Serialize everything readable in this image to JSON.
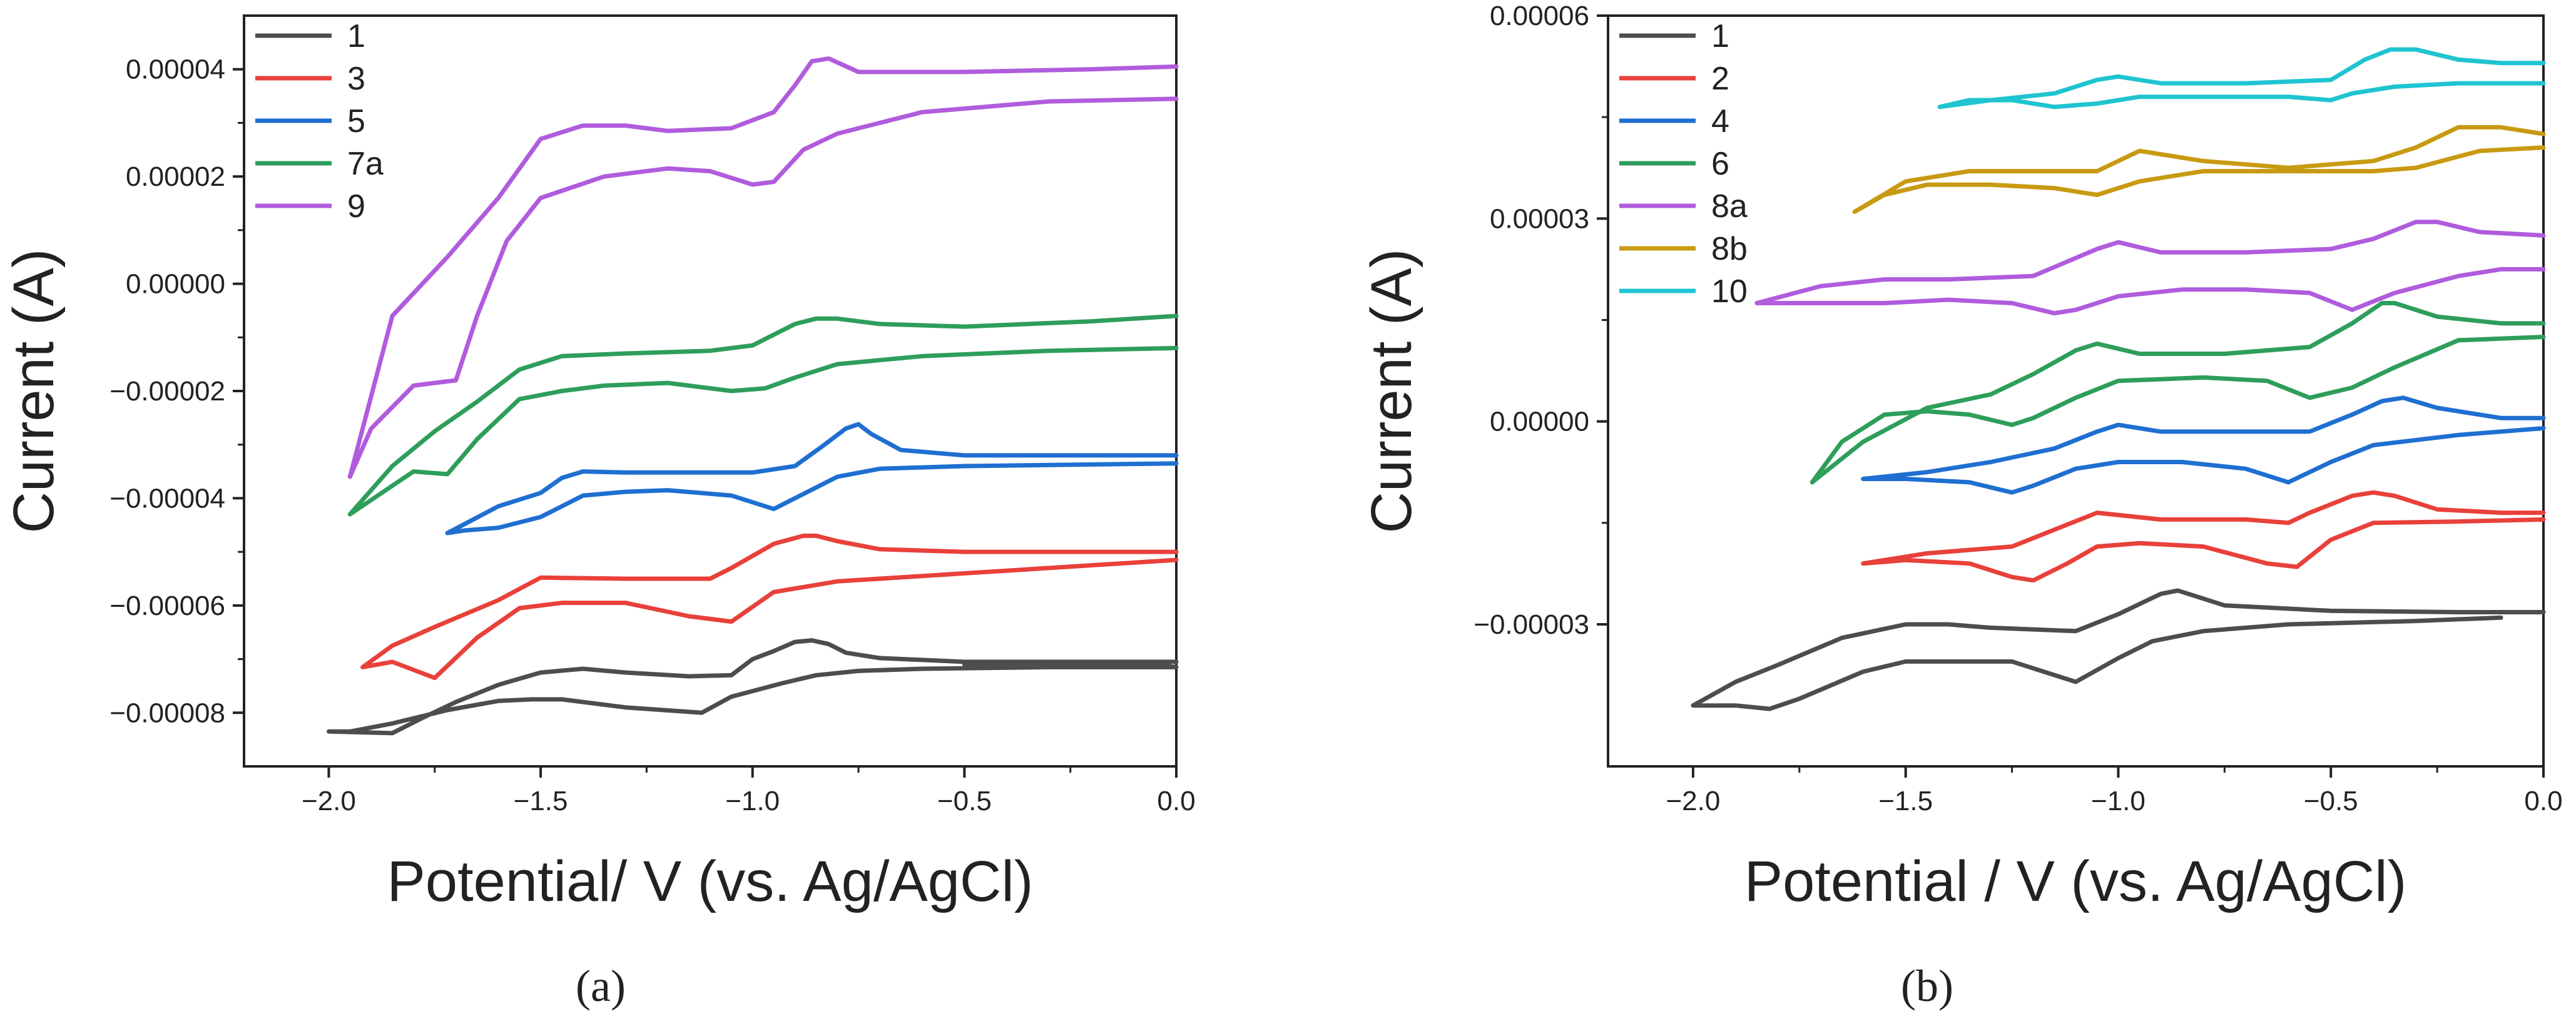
{
  "chart_data": [
    {
      "type": "line",
      "panel_label": "(a)",
      "xlabel": "Potential/ V (vs. Ag/AgCl)",
      "ylabel": "Current (A)",
      "xlim": [
        -2.2,
        0.0
      ],
      "ylim": [
        -9e-05,
        5e-05
      ],
      "xticks": [
        -2.0,
        -1.5,
        -1.0,
        -0.5,
        0.0
      ],
      "xtick_labels": [
        "−2.0",
        "−1.5",
        "−1.0",
        "−0.5",
        "0.0"
      ],
      "yticks": [
        4e-05,
        2e-05,
        0.0,
        -2e-05,
        -4e-05,
        -6e-05,
        -8e-05
      ],
      "ytick_labels": [
        "0.00004",
        "0.00002",
        "0.00000",
        "−0.00002",
        "−0.00004",
        "−0.00006",
        "−0.00008"
      ],
      "legend_position": "top-left",
      "series": [
        {
          "name": "1",
          "color": "#4d4d4d",
          "x": [
            -0.5,
            -0.3,
            -0.05,
            0.0,
            -0.3,
            -0.6,
            -0.75,
            -0.85,
            -0.93,
            -1.05,
            -1.12,
            -1.3,
            -1.45,
            -1.52,
            -1.6,
            -1.72,
            -1.85,
            -1.95,
            -2.0,
            -1.85,
            -1.78,
            -1.7,
            -1.6,
            -1.5,
            -1.4,
            -1.3,
            -1.15,
            -1.05,
            -1.0,
            -0.95,
            -0.9,
            -0.86,
            -0.82,
            -0.78,
            -0.7,
            -0.5,
            -0.2,
            0.0
          ],
          "y": [
            -7.1e-05,
            -7.1e-05,
            -7.1e-05,
            -7.15e-05,
            -7.15e-05,
            -7.18e-05,
            -7.22e-05,
            -7.3e-05,
            -7.45e-05,
            -7.7e-05,
            -8e-05,
            -7.9e-05,
            -7.75e-05,
            -7.75e-05,
            -7.78e-05,
            -7.95e-05,
            -8.2e-05,
            -8.35e-05,
            -8.35e-05,
            -8.38e-05,
            -8.1e-05,
            -7.8e-05,
            -7.48e-05,
            -7.25e-05,
            -7.18e-05,
            -7.25e-05,
            -7.32e-05,
            -7.3e-05,
            -7e-05,
            -6.85e-05,
            -6.68e-05,
            -6.65e-05,
            -6.72e-05,
            -6.88e-05,
            -6.98e-05,
            -7.05e-05,
            -7.05e-05,
            -7.05e-05
          ]
        },
        {
          "name": "3",
          "color": "#e8413a",
          "x": [
            0.0,
            -0.3,
            -0.6,
            -0.8,
            -0.95,
            -1.05,
            -1.15,
            -1.3,
            -1.45,
            -1.55,
            -1.65,
            -1.75,
            -1.85,
            -1.92,
            -1.85,
            -1.75,
            -1.6,
            -1.5,
            -1.3,
            -1.1,
            -1.05,
            -0.95,
            -0.88,
            -0.85,
            -0.8,
            -0.7,
            -0.5,
            -0.2,
            0.0
          ],
          "y": [
            -5.15e-05,
            -5.3e-05,
            -5.45e-05,
            -5.55e-05,
            -5.75e-05,
            -6.3e-05,
            -6.2e-05,
            -5.95e-05,
            -5.95e-05,
            -6.05e-05,
            -6.6e-05,
            -7.35e-05,
            -7.05e-05,
            -7.15e-05,
            -6.75e-05,
            -6.4e-05,
            -5.9e-05,
            -5.48e-05,
            -5.5e-05,
            -5.5e-05,
            -5.3e-05,
            -4.85e-05,
            -4.7e-05,
            -4.7e-05,
            -4.8e-05,
            -4.95e-05,
            -5e-05,
            -5e-05,
            -5e-05
          ]
        },
        {
          "name": "5",
          "color": "#1f6fd1",
          "x": [
            0.0,
            -0.5,
            -0.7,
            -0.8,
            -0.9,
            -0.95,
            -1.05,
            -1.2,
            -1.3,
            -1.4,
            -1.5,
            -1.6,
            -1.68,
            -1.72,
            -1.6,
            -1.5,
            -1.45,
            -1.4,
            -1.3,
            -1.0,
            -0.9,
            -0.83,
            -0.78,
            -0.75,
            -0.72,
            -0.65,
            -0.5,
            0.0
          ],
          "y": [
            -3.35e-05,
            -3.4e-05,
            -3.45e-05,
            -3.6e-05,
            -4e-05,
            -4.2e-05,
            -3.95e-05,
            -3.85e-05,
            -3.88e-05,
            -3.95e-05,
            -4.35e-05,
            -4.55e-05,
            -4.6e-05,
            -4.65e-05,
            -4.15e-05,
            -3.9e-05,
            -3.62e-05,
            -3.5e-05,
            -3.52e-05,
            -3.52e-05,
            -3.4e-05,
            -3e-05,
            -2.7e-05,
            -2.62e-05,
            -2.8e-05,
            -3.1e-05,
            -3.2e-05,
            -3.2e-05
          ]
        },
        {
          "name": "7a",
          "color": "#2e9e5b",
          "x": [
            0.0,
            -0.3,
            -0.6,
            -0.8,
            -0.9,
            -0.97,
            -1.05,
            -1.2,
            -1.35,
            -1.45,
            -1.55,
            -1.65,
            -1.72,
            -1.8,
            -1.95,
            -1.85,
            -1.75,
            -1.65,
            -1.55,
            -1.45,
            -1.3,
            -1.1,
            -1.0,
            -0.9,
            -0.85,
            -0.8,
            -0.7,
            -0.5,
            -0.2,
            0.0
          ],
          "y": [
            -1.2e-05,
            -1.25e-05,
            -1.35e-05,
            -1.5e-05,
            -1.75e-05,
            -1.95e-05,
            -2e-05,
            -1.85e-05,
            -1.9e-05,
            -2e-05,
            -2.15e-05,
            -2.9e-05,
            -3.55e-05,
            -3.5e-05,
            -4.3e-05,
            -3.4e-05,
            -2.75e-05,
            -2.2e-05,
            -1.6e-05,
            -1.35e-05,
            -1.3e-05,
            -1.25e-05,
            -1.15e-05,
            -7.5e-06,
            -6.5e-06,
            -6.5e-06,
            -7.5e-06,
            -8e-06,
            -7e-06,
            -6e-06
          ]
        },
        {
          "name": "9",
          "color": "#b05cdd",
          "x": [
            0.0,
            -0.3,
            -0.6,
            -0.8,
            -0.88,
            -0.95,
            -1.0,
            -1.1,
            -1.2,
            -1.35,
            -1.5,
            -1.58,
            -1.65,
            -1.7,
            -1.8,
            -1.9,
            -1.95,
            -1.85,
            -1.72,
            -1.6,
            -1.5,
            -1.4,
            -1.3,
            -1.2,
            -1.05,
            -0.95,
            -0.9,
            -0.86,
            -0.82,
            -0.75,
            -0.5,
            -0.2,
            0.0
          ],
          "y": [
            3.45e-05,
            3.4e-05,
            3.2e-05,
            2.8e-05,
            2.5e-05,
            1.9e-05,
            1.85e-05,
            2.1e-05,
            2.15e-05,
            2e-05,
            1.6e-05,
            8e-06,
            -6e-06,
            -1.8e-05,
            -1.9e-05,
            -2.7e-05,
            -3.6e-05,
            -6e-06,
            5e-06,
            1.6e-05,
            2.7e-05,
            2.95e-05,
            2.95e-05,
            2.85e-05,
            2.9e-05,
            3.2e-05,
            3.7e-05,
            4.15e-05,
            4.2e-05,
            3.95e-05,
            3.95e-05,
            4e-05,
            4.05e-05
          ]
        }
      ]
    },
    {
      "type": "line",
      "panel_label": "(b)",
      "xlabel": "Potential / V (vs. Ag/AgCl)",
      "ylabel": "Current (A)",
      "xlim": [
        -2.2,
        0.0
      ],
      "ylim": [
        -5.1e-05,
        6e-05
      ],
      "xticks": [
        -2.0,
        -1.5,
        -1.0,
        -0.5,
        0.0
      ],
      "xtick_labels": [
        "−2.0",
        "−1.5",
        "−1.0",
        "−0.5",
        "0.0"
      ],
      "yticks": [
        6e-05,
        3e-05,
        0.0,
        -3e-05
      ],
      "ytick_labels": [
        "0.00006",
        "0.00003",
        "0.00000",
        "−0.00003"
      ],
      "legend_position": "top-left",
      "series": [
        {
          "name": "1",
          "color": "#4d4d4d",
          "x": [
            -0.1,
            -0.3,
            -0.6,
            -0.8,
            -0.92,
            -1.0,
            -1.1,
            -1.25,
            -1.4,
            -1.5,
            -1.6,
            -1.75,
            -1.82,
            -1.9,
            -2.0,
            -1.9,
            -1.8,
            -1.65,
            -1.5,
            -1.4,
            -1.3,
            -1.1,
            -1.0,
            -0.95,
            -0.9,
            -0.86,
            -0.82,
            -0.75,
            -0.5,
            -0.2,
            0.0
          ],
          "y": [
            -2.9e-05,
            -2.95e-05,
            -3e-05,
            -3.1e-05,
            -3.25e-05,
            -3.5e-05,
            -3.85e-05,
            -3.55e-05,
            -3.55e-05,
            -3.55e-05,
            -3.7e-05,
            -4.1e-05,
            -4.25e-05,
            -4.2e-05,
            -4.2e-05,
            -3.85e-05,
            -3.6e-05,
            -3.2e-05,
            -3e-05,
            -3e-05,
            -3.05e-05,
            -3.1e-05,
            -2.85e-05,
            -2.7e-05,
            -2.55e-05,
            -2.5e-05,
            -2.58e-05,
            -2.72e-05,
            -2.8e-05,
            -2.82e-05,
            -2.82e-05
          ]
        },
        {
          "name": "2",
          "color": "#e8413a",
          "x": [
            0.0,
            -0.2,
            -0.4,
            -0.5,
            -0.58,
            -0.65,
            -0.8,
            -0.95,
            -1.05,
            -1.12,
            -1.2,
            -1.25,
            -1.35,
            -1.5,
            -1.6,
            -1.45,
            -1.25,
            -1.15,
            -1.05,
            -0.9,
            -0.7,
            -0.6,
            -0.55,
            -0.45,
            -0.4,
            -0.35,
            -0.25,
            -0.1,
            0.0
          ],
          "y": [
            -1.45e-05,
            -1.48e-05,
            -1.5e-05,
            -1.75e-05,
            -2.15e-05,
            -2.1e-05,
            -1.85e-05,
            -1.8e-05,
            -1.85e-05,
            -2.1e-05,
            -2.35e-05,
            -2.3e-05,
            -2.1e-05,
            -2.05e-05,
            -2.1e-05,
            -1.95e-05,
            -1.85e-05,
            -1.6e-05,
            -1.35e-05,
            -1.45e-05,
            -1.45e-05,
            -1.5e-05,
            -1.35e-05,
            -1.1e-05,
            -1.05e-05,
            -1.1e-05,
            -1.3e-05,
            -1.35e-05,
            -1.35e-05
          ]
        },
        {
          "name": "4",
          "color": "#1f6fd1",
          "x": [
            0.0,
            -0.2,
            -0.4,
            -0.5,
            -0.6,
            -0.7,
            -0.85,
            -1.0,
            -1.1,
            -1.2,
            -1.25,
            -1.35,
            -1.5,
            -1.6,
            -1.45,
            -1.3,
            -1.15,
            -1.05,
            -1.0,
            -0.9,
            -0.7,
            -0.55,
            -0.45,
            -0.38,
            -0.33,
            -0.25,
            -0.1,
            0.0
          ],
          "y": [
            -1e-06,
            -2e-06,
            -3.5e-06,
            -6e-06,
            -9e-06,
            -7e-06,
            -6e-06,
            -6e-06,
            -7e-06,
            -9.5e-06,
            -1.05e-05,
            -9e-06,
            -8.5e-06,
            -8.5e-06,
            -7.5e-06,
            -6e-06,
            -4e-06,
            -1.5e-06,
            -5e-07,
            -1.5e-06,
            -1.5e-06,
            -1.5e-06,
            1e-06,
            3e-06,
            3.5e-06,
            2e-06,
            5e-07,
            5e-07
          ]
        },
        {
          "name": "6",
          "color": "#2e9e5b",
          "x": [
            0.0,
            -0.2,
            -0.35,
            -0.45,
            -0.55,
            -0.65,
            -0.8,
            -1.0,
            -1.1,
            -1.2,
            -1.25,
            -1.35,
            -1.45,
            -1.55,
            -1.65,
            -1.72,
            -1.6,
            -1.45,
            -1.3,
            -1.2,
            -1.1,
            -1.05,
            -0.95,
            -0.75,
            -0.55,
            -0.45,
            -0.38,
            -0.35,
            -0.25,
            -0.1,
            0.0
          ],
          "y": [
            1.25e-05,
            1.2e-05,
            8e-06,
            5e-06,
            3.5e-06,
            6e-06,
            6.5e-06,
            6e-06,
            3.5e-06,
            5e-07,
            -5e-07,
            1e-06,
            1.5e-06,
            1e-06,
            -3e-06,
            -9e-06,
            -3e-06,
            2e-06,
            4e-06,
            7e-06,
            1.05e-05,
            1.15e-05,
            1e-05,
            1e-05,
            1.1e-05,
            1.45e-05,
            1.75e-05,
            1.75e-05,
            1.55e-05,
            1.45e-05,
            1.45e-05
          ]
        },
        {
          "name": "8a",
          "color": "#b05cdd",
          "x": [
            0.0,
            -0.1,
            -0.2,
            -0.35,
            -0.45,
            -0.55,
            -0.7,
            -0.85,
            -1.0,
            -1.1,
            -1.15,
            -1.25,
            -1.4,
            -1.55,
            -1.7,
            -1.85,
            -1.7,
            -1.55,
            -1.4,
            -1.2,
            -1.05,
            -1.0,
            -0.9,
            -0.7,
            -0.5,
            -0.4,
            -0.3,
            -0.25,
            -0.15,
            0.0
          ],
          "y": [
            2.25e-05,
            2.25e-05,
            2.15e-05,
            1.9e-05,
            1.65e-05,
            1.9e-05,
            1.95e-05,
            1.95e-05,
            1.85e-05,
            1.65e-05,
            1.6e-05,
            1.75e-05,
            1.8e-05,
            1.75e-05,
            1.75e-05,
            1.75e-05,
            2e-05,
            2.1e-05,
            2.1e-05,
            2.15e-05,
            2.55e-05,
            2.65e-05,
            2.5e-05,
            2.5e-05,
            2.55e-05,
            2.7e-05,
            2.95e-05,
            2.95e-05,
            2.8e-05,
            2.75e-05
          ]
        },
        {
          "name": "8b",
          "color": "#c89a12",
          "x": [
            0.0,
            -0.15,
            -0.3,
            -0.4,
            -0.6,
            -0.8,
            -0.95,
            -1.05,
            -1.15,
            -1.3,
            -1.45,
            -1.55,
            -1.62,
            -1.5,
            -1.35,
            -1.2,
            -1.05,
            -1.0,
            -0.95,
            -0.8,
            -0.6,
            -0.4,
            -0.3,
            -0.2,
            -0.1,
            0.0
          ],
          "y": [
            4.05e-05,
            4e-05,
            3.75e-05,
            3.7e-05,
            3.7e-05,
            3.7e-05,
            3.55e-05,
            3.35e-05,
            3.45e-05,
            3.5e-05,
            3.5e-05,
            3.35e-05,
            3.1e-05,
            3.55e-05,
            3.7e-05,
            3.7e-05,
            3.7e-05,
            3.85e-05,
            4e-05,
            3.85e-05,
            3.75e-05,
            3.85e-05,
            4.05e-05,
            4.35e-05,
            4.35e-05,
            4.25e-05
          ]
        },
        {
          "name": "10",
          "color": "#1fc4d0",
          "x": [
            0.0,
            -0.2,
            -0.35,
            -0.45,
            -0.5,
            -0.6,
            -0.8,
            -0.95,
            -1.05,
            -1.15,
            -1.25,
            -1.35,
            -1.42,
            -1.3,
            -1.15,
            -1.05,
            -1.0,
            -0.9,
            -0.7,
            -0.5,
            -0.42,
            -0.36,
            -0.3,
            -0.2,
            -0.1,
            0.0
          ],
          "y": [
            5e-05,
            5e-05,
            4.95e-05,
            4.85e-05,
            4.75e-05,
            4.8e-05,
            4.8e-05,
            4.8e-05,
            4.7e-05,
            4.65e-05,
            4.75e-05,
            4.75e-05,
            4.65e-05,
            4.75e-05,
            4.85e-05,
            5.05e-05,
            5.1e-05,
            5e-05,
            5e-05,
            5.05e-05,
            5.35e-05,
            5.5e-05,
            5.5e-05,
            5.35e-05,
            5.3e-05,
            5.3e-05
          ]
        }
      ]
    }
  ]
}
